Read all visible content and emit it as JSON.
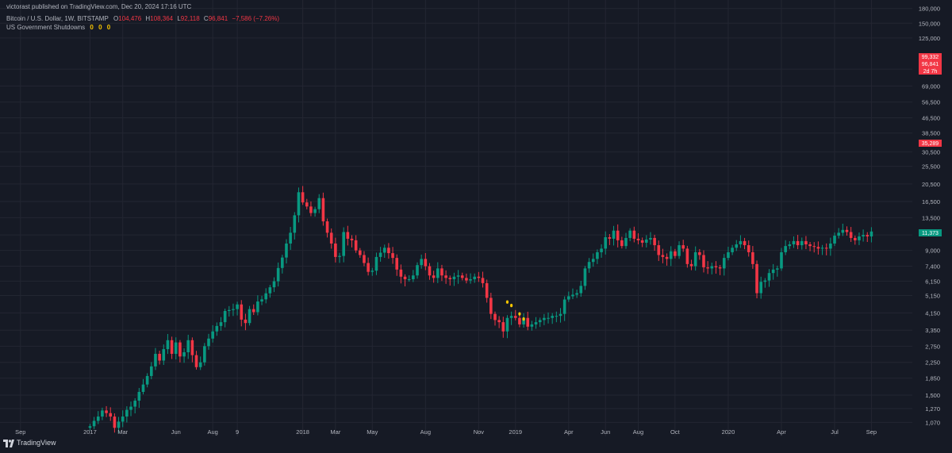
{
  "header": {
    "published": "victorast published on TradingView.com, Dec 20, 2024 17:16 UTC",
    "symbol": "Bitcoin / U.S. Dollar, 1W, BITSTAMP",
    "ohlc": {
      "o_label": "O",
      "o": "104,476",
      "h_label": "H",
      "h": "108,364",
      "l_label": "L",
      "l": "92,118",
      "c": "96,841",
      "change": "−7,586 (−7.26%)"
    },
    "indicator": "US Government Shutdowns",
    "indicator_values": [
      "0",
      "0",
      "0"
    ]
  },
  "price_tags": [
    {
      "text": "99,332",
      "color": "#f23645"
    },
    {
      "text": "96,841",
      "color": "#f23645"
    },
    {
      "text": "2d 7h",
      "color": "#f23645"
    },
    {
      "text": "35,289",
      "color": "#f23645"
    },
    {
      "text": "11,373",
      "color": "#089981"
    }
  ],
  "footer": {
    "brand": "TradingView"
  },
  "colors": {
    "up": "#089981",
    "down": "#f23645",
    "marker": "#f7c500",
    "background": "#161a25",
    "grid": "#232632",
    "axis_text": "#b2b5be"
  },
  "chart_data": {
    "type": "candlestick",
    "title": "",
    "y_scale": "log",
    "ylim": [
      900,
      200000
    ],
    "y_ticks": [
      1070,
      1270,
      1500,
      1850,
      2250,
      2750,
      3350,
      4150,
      5150,
      6150,
      7400,
      9000,
      10900,
      13500,
      16500,
      20500,
      25500,
      30500,
      38500,
      46500,
      56500,
      69000,
      85000,
      125000,
      150000,
      180000
    ],
    "y_tick_labels": [
      "1,070",
      "1,270",
      "1,500",
      "1,850",
      "2,250",
      "2,750",
      "3,350",
      "4,150",
      "5,150",
      "6,150",
      "7,400",
      "9,000",
      "",
      "13,500",
      "16,500",
      "20,500",
      "25,500",
      "30,500",
      "38,500",
      "46,500",
      "56,500",
      "69,000",
      "",
      "125,000",
      "150,000",
      "180,000"
    ],
    "x_tick_labels": [
      {
        "label": "Sep",
        "week": -17
      },
      {
        "label": "2017",
        "week": 0
      },
      {
        "label": "Mar",
        "week": 8
      },
      {
        "label": "Jun",
        "week": 21
      },
      {
        "label": "Aug",
        "week": 30
      },
      {
        "label": "9",
        "week": 36
      },
      {
        "label": "2018",
        "week": 52
      },
      {
        "label": "Mar",
        "week": 60
      },
      {
        "label": "May",
        "week": 69
      },
      {
        "label": "Aug",
        "week": 82
      },
      {
        "label": "Nov",
        "week": 95
      },
      {
        "label": "2019",
        "week": 104
      },
      {
        "label": "Apr",
        "week": 117
      },
      {
        "label": "Jun",
        "week": 126
      },
      {
        "label": "Aug",
        "week": 134
      },
      {
        "label": "Oct",
        "week": 143
      },
      {
        "label": "2020",
        "week": 156
      },
      {
        "label": "Apr",
        "week": 169
      },
      {
        "label": "Jul",
        "week": 182
      },
      {
        "label": "Sep",
        "week": 191
      }
    ],
    "x_range_weeks": [
      -22,
      201
    ],
    "close_start": 1000,
    "closes": [
      1020,
      1090,
      1150,
      1240,
      1200,
      1150,
      1000,
      1080,
      1150,
      1250,
      1300,
      1400,
      1560,
      1710,
      1900,
      2140,
      2500,
      2300,
      2650,
      2960,
      2500,
      2880,
      2420,
      2550,
      2960,
      2460,
      2120,
      2250,
      2750,
      3020,
      3300,
      3530,
      3700,
      4250,
      4300,
      4350,
      4610,
      3820,
      3660,
      4350,
      4190,
      4780,
      4910,
      5290,
      5700,
      6140,
      7240,
      8240,
      9800,
      11200,
      13900,
      18500,
      16300,
      15500,
      14300,
      15000,
      17200,
      12900,
      11200,
      9800,
      8300,
      8400,
      11300,
      10400,
      10200,
      9000,
      8500,
      7700,
      6900,
      7000,
      8300,
      8750,
      9300,
      8700,
      8200,
      7100,
      6500,
      6300,
      6300,
      6600,
      7500,
      8100,
      7400,
      6600,
      6400,
      7200,
      6600,
      6400,
      6300,
      6500,
      6600,
      6400,
      6200,
      6300,
      6500,
      6400,
      6000,
      5000,
      4100,
      3800,
      3700,
      3300,
      3900,
      4000,
      3900,
      3600,
      3900,
      3500,
      3600,
      3700,
      3800,
      3900,
      3900,
      4000,
      4000,
      4100,
      4900,
      5100,
      5200,
      5300,
      5800,
      7200,
      7800,
      8100,
      8800,
      9200,
      10600,
      10400,
      11500,
      10200,
      9500,
      10500,
      11500,
      10400,
      10200,
      9900,
      10300,
      10500,
      9600,
      8500,
      8300,
      8100,
      8900,
      8400,
      9600,
      9200,
      7600,
      7400,
      8800,
      8500,
      7300,
      7200,
      7400,
      7300,
      7200,
      8200,
      8800,
      9300,
      9700,
      10100,
      9600,
      8800,
      7600,
      5300,
      6100,
      6200,
      6800,
      7100,
      7200,
      8800,
      9500,
      9700,
      10100,
      9600,
      10100,
      9700,
      9500,
      9400,
      9200,
      9300,
      9200,
      9800,
      10800,
      11200,
      11600,
      11300,
      10500,
      10200,
      10700,
      10900,
      10700,
      11373
    ],
    "shutdown_markers": [
      {
        "week": 102,
        "value": 4750
      },
      {
        "week": 103,
        "value": 4550
      },
      {
        "week": 105,
        "value": 4100
      },
      {
        "week": 106,
        "value": 3850
      }
    ]
  }
}
